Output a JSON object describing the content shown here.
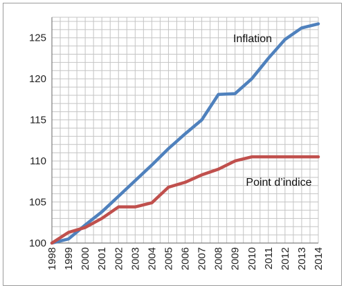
{
  "chart_data": {
    "type": "line",
    "title": "",
    "xlabel": "",
    "ylabel": "",
    "grid": true,
    "legend": "none",
    "x": [
      "1998",
      "1999",
      "2000",
      "2001",
      "2002",
      "2003",
      "2004",
      "2005",
      "2006",
      "2007",
      "2008",
      "2009",
      "2010",
      "2011",
      "2012",
      "2013",
      "2014"
    ],
    "ylim": [
      100,
      127.5
    ],
    "yticks": [
      100,
      105,
      110,
      115,
      120,
      125
    ],
    "series": [
      {
        "name": "Inflation",
        "color": "#4f81bd",
        "values": [
          100,
          100.5,
          102.2,
          103.8,
          105.7,
          107.6,
          109.5,
          111.5,
          113.3,
          115.0,
          118.1,
          118.2,
          120.0,
          122.5,
          124.8,
          126.2,
          126.7
        ]
      },
      {
        "name": "Point d’indice",
        "color": "#c0504d",
        "values": [
          100,
          101.3,
          101.9,
          103.0,
          104.4,
          104.4,
          104.9,
          106.8,
          107.4,
          108.3,
          109.0,
          110.0,
          110.5,
          110.5,
          110.5,
          110.5,
          110.5
        ]
      }
    ]
  }
}
